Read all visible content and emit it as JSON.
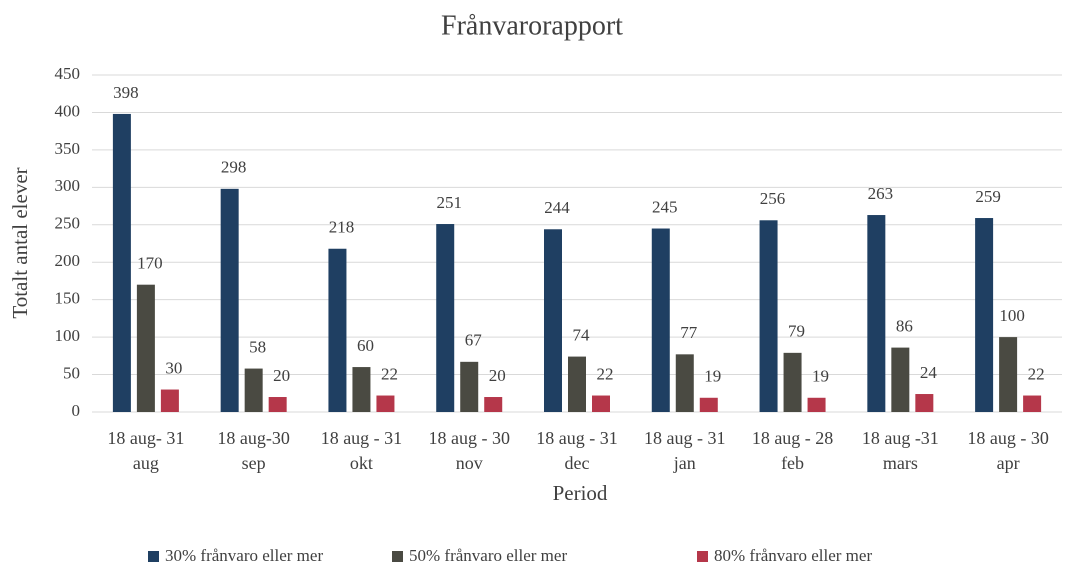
{
  "chart_data": {
    "type": "bar",
    "title": "Frånvarorapport",
    "x_label": "Period",
    "y_label": "Totalt antal elever",
    "categories": [
      [
        "18 aug- 31",
        "aug"
      ],
      [
        "18 aug-30",
        "sep"
      ],
      [
        "18 aug - 31",
        "okt"
      ],
      [
        "18 aug - 30",
        "nov"
      ],
      [
        "18 aug - 31",
        "dec"
      ],
      [
        "18 aug - 31",
        "jan"
      ],
      [
        "18 aug - 28",
        "feb"
      ],
      [
        "18 aug -31",
        "mars"
      ],
      [
        "18 aug - 30",
        "apr"
      ]
    ],
    "series": [
      {
        "name": "30% frånvaro eller mer",
        "color": "#1f3f62",
        "values": [
          398,
          298,
          218,
          251,
          244,
          245,
          256,
          263,
          259
        ]
      },
      {
        "name": "50% frånvaro eller mer",
        "color": "#4a4a42",
        "values": [
          170,
          58,
          60,
          67,
          74,
          77,
          79,
          86,
          100
        ]
      },
      {
        "name": "80% frånvaro eller mer",
        "color": "#b5374a",
        "values": [
          30,
          20,
          22,
          20,
          22,
          19,
          19,
          24,
          22
        ]
      }
    ],
    "ylim": [
      0,
      450
    ],
    "yticks": [
      0,
      50,
      100,
      150,
      200,
      250,
      300,
      350,
      400,
      450
    ],
    "grid": true,
    "legend": "bottom"
  }
}
